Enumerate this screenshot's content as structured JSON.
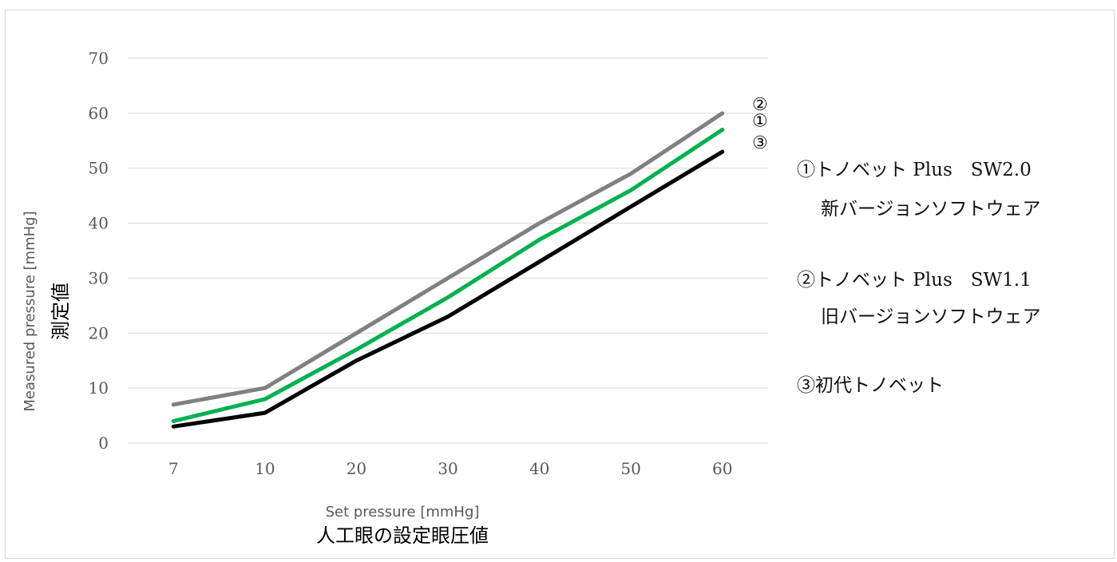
{
  "chart_data": {
    "type": "line",
    "categories": [
      "7",
      "10",
      "20",
      "30",
      "40",
      "50",
      "60"
    ],
    "ylim": [
      0,
      70
    ],
    "yticks": [
      "0",
      "10",
      "20",
      "30",
      "40",
      "50",
      "60",
      "70"
    ],
    "grid": true,
    "xlabel_en": "Set pressure [mmHg]",
    "xlabel_ja": "人工眼の設定眼圧値",
    "ylabel_en": "Measured pressure [mmHg]",
    "ylabel_ja": "測定値",
    "series": [
      {
        "marker": "②",
        "color": "#808080",
        "values": [
          7,
          10,
          20,
          30,
          40,
          49,
          60
        ]
      },
      {
        "marker": "①",
        "color": "#00b050",
        "values": [
          4,
          8,
          17,
          26.5,
          37,
          46,
          57
        ]
      },
      {
        "marker": "③",
        "color": "#000000",
        "values": [
          3,
          5.5,
          15,
          23,
          33,
          43,
          53
        ]
      }
    ],
    "legend": {
      "placement": "right",
      "entries": [
        {
          "line1": "①トノベット Plus　SW2.0",
          "line2": "新バージョンソフトウェア"
        },
        {
          "line1": "②トノベット Plus　SW1.1",
          "line2": "旧バージョンソフトウェア"
        },
        {
          "line1": "③初代トノベット",
          "line2": ""
        }
      ]
    }
  }
}
